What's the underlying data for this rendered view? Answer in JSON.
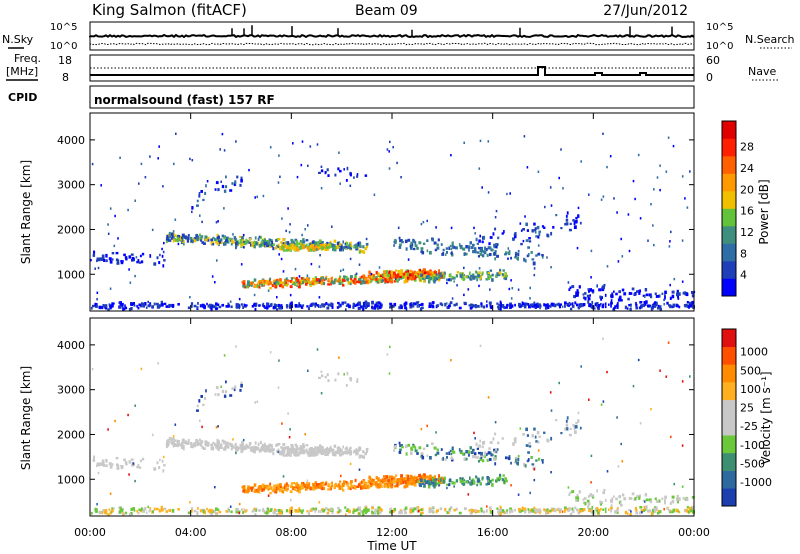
{
  "header": {
    "station": "King Salmon (fitACF)",
    "beam": "Beam 09",
    "date": "27/Jun/2012"
  },
  "noise_panel": {
    "left_label": "N.Sky",
    "right_label": "N.Search",
    "left_ticks": [
      "10^5",
      "10^0"
    ],
    "right_ticks": [
      "10^5",
      "10^0"
    ]
  },
  "freq_panel": {
    "left_label_1": "Freq.",
    "left_label_2": "[MHz]",
    "right_label": "Nave",
    "left_ticks": [
      "18",
      "8"
    ],
    "right_ticks": [
      "60",
      "0"
    ]
  },
  "cpid": {
    "label": "CPID",
    "value": "normalsound (fast) 157 RF"
  },
  "chart_data": [
    {
      "type": "heatmap",
      "title": "",
      "ylabel": "Slant Range [km]",
      "xlabel": "",
      "ylim": [
        180,
        4600
      ],
      "yticks": [
        "1000",
        "2000",
        "3000",
        "4000"
      ],
      "colorbar": {
        "label": "Power [dB]",
        "ticks": [
          "4",
          "8",
          "12",
          "16",
          "20",
          "24",
          "28"
        ],
        "colors": [
          "#0000ff",
          "#1f3fb8",
          "#2f6da6",
          "#3f8f7f",
          "#62c23a",
          "#f0c000",
          "#ff9900",
          "#ff6000",
          "#ff2000",
          "#e00000"
        ]
      }
    },
    {
      "type": "heatmap",
      "title": "",
      "ylabel": "Slant Range [km]",
      "xlabel": "Time UT",
      "ylim": [
        180,
        4600
      ],
      "yticks": [
        "1000",
        "2000",
        "3000",
        "4000"
      ],
      "xticks": [
        "00:00",
        "04:00",
        "08:00",
        "12:00",
        "16:00",
        "20:00",
        "00:00"
      ],
      "colorbar": {
        "label": "Velocity [m s⁻¹]",
        "ticks": [
          "1000",
          "500",
          "100",
          "25",
          "-25",
          "-100",
          "-500",
          "-1000"
        ],
        "colors": [
          "#1c3fb0",
          "#2e6aa0",
          "#3c8f70",
          "#6ac83a",
          "#c8c8c8",
          "#c8c8c8",
          "#ffb020",
          "#ff8c00",
          "#ff5000",
          "#e01010"
        ]
      }
    }
  ]
}
